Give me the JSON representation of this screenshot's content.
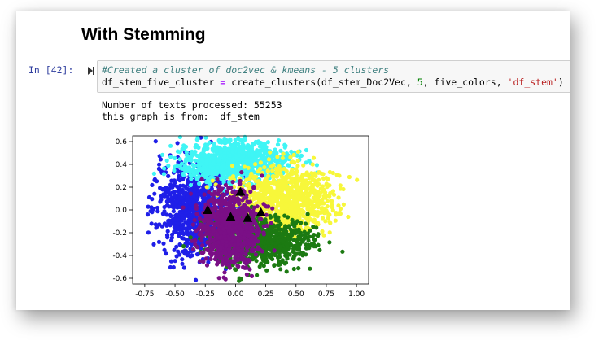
{
  "heading": "With Stemming",
  "cell": {
    "prompt": "In [42]:",
    "comment": "#Created a cluster of doc2vec & kmeans - 5 clusters",
    "code": {
      "var": "df_stem_five_cluster ",
      "eq": "=",
      "call": " create_clusters(df_stem_Doc2Vec, ",
      "num": "5",
      "mid": ", five_colors, ",
      "str": "'df_stem'",
      "end": ")"
    }
  },
  "output": {
    "line1": "Number of texts processed: 55253",
    "line2": "this graph is from:  df_stem"
  },
  "colors": {
    "blue": "#1f1fe8",
    "cyan": "#3ff5f5",
    "yellow": "#f7f73a",
    "green": "#1c7a12",
    "purple": "#7a0f86",
    "centroid": "#000000"
  },
  "chart_data": {
    "type": "scatter",
    "xlim": [
      -0.85,
      1.1
    ],
    "ylim": [
      -0.65,
      0.65
    ],
    "xticks": [
      "-0.75",
      "-0.50",
      "-0.25",
      "0.00",
      "0.25",
      "0.50",
      "0.75",
      "1.00"
    ],
    "xtick_values": [
      -0.75,
      -0.5,
      -0.25,
      0.0,
      0.25,
      0.5,
      0.75,
      1.0
    ],
    "yticks": [
      "0.6",
      "0.4",
      "0.2",
      "0.0",
      "-0.2",
      "-0.4",
      "-0.6"
    ],
    "ytick_values": [
      0.6,
      0.4,
      0.2,
      0.0,
      -0.2,
      -0.4,
      -0.6
    ],
    "clusters": [
      {
        "color": "blue",
        "center": [
          -0.33,
          0.02
        ],
        "spread": [
          0.16,
          0.2
        ],
        "density": 1.0
      },
      {
        "color": "cyan",
        "center": [
          0.0,
          0.42
        ],
        "spread": [
          0.23,
          0.09
        ],
        "density": 1.0
      },
      {
        "color": "yellow",
        "center": [
          0.4,
          0.08
        ],
        "spread": [
          0.2,
          0.15
        ],
        "density": 1.0
      },
      {
        "color": "green",
        "center": [
          0.2,
          -0.27
        ],
        "spread": [
          0.2,
          0.1
        ],
        "density": 1.0
      },
      {
        "color": "purple",
        "center": [
          -0.05,
          -0.17
        ],
        "spread": [
          0.12,
          0.16
        ],
        "density": 1.0
      }
    ],
    "centroids": [
      [
        -0.23,
        0.0
      ],
      [
        0.04,
        0.16
      ],
      [
        -0.04,
        -0.06
      ],
      [
        0.1,
        -0.07
      ],
      [
        0.21,
        -0.02
      ]
    ]
  }
}
